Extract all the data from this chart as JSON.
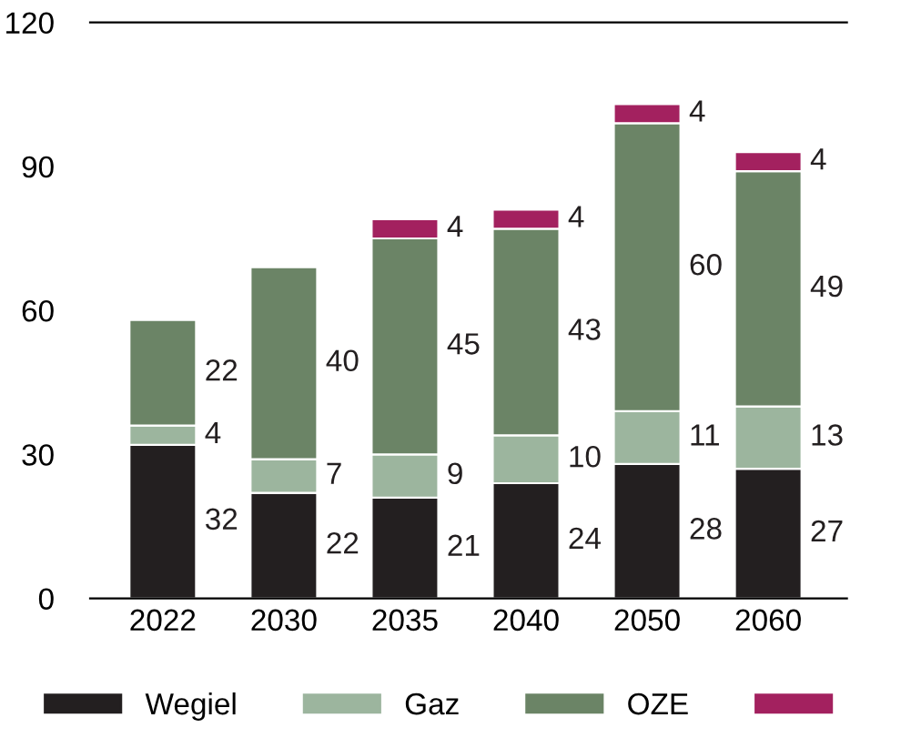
{
  "chart_data": {
    "type": "bar",
    "stacked": true,
    "categories": [
      "2022",
      "2030",
      "2035",
      "2040",
      "2050",
      "2060"
    ],
    "series": [
      {
        "name": "Wegiel",
        "color": "#231f20",
        "values": [
          32,
          22,
          21,
          24,
          28,
          27
        ]
      },
      {
        "name": "Gaz",
        "color": "#9cb59e",
        "values": [
          4,
          7,
          9,
          10,
          11,
          13
        ]
      },
      {
        "name": "OZE",
        "color": "#6b8466",
        "values": [
          22,
          40,
          45,
          43,
          60,
          49
        ]
      },
      {
        "color": "#a3215f",
        "values": [
          null,
          null,
          4,
          4,
          4,
          4
        ]
      }
    ],
    "ylim": [
      0,
      120
    ],
    "yticks": [
      0,
      30,
      60,
      90,
      120
    ],
    "grid": false,
    "legend": "bottom",
    "data_labels": true
  }
}
